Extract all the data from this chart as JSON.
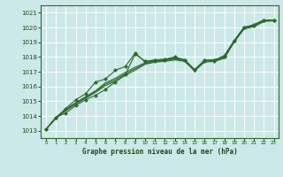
{
  "title": "Graphe pression niveau de la mer (hPa)",
  "bg_color": "#cce8e8",
  "grid_color": "#aad4d4",
  "line_color": "#2d6a2d",
  "xlim": [
    -0.5,
    23.5
  ],
  "ylim": [
    1012.5,
    1021.5
  ],
  "yticks": [
    1013,
    1014,
    1015,
    1016,
    1017,
    1018,
    1019,
    1020,
    1021
  ],
  "xticks": [
    0,
    1,
    2,
    3,
    4,
    5,
    6,
    7,
    8,
    9,
    10,
    11,
    12,
    13,
    14,
    15,
    16,
    17,
    18,
    19,
    20,
    21,
    22,
    23
  ],
  "line1": [
    1013.1,
    1013.9,
    1014.2,
    1014.7,
    1015.1,
    1015.4,
    1015.8,
    1016.3,
    1016.8,
    1018.2,
    1017.7,
    1017.75,
    1017.8,
    1017.95,
    1017.8,
    1017.1,
    1017.8,
    1017.75,
    1018.1,
    1019.1,
    1020.0,
    1020.15,
    1020.5,
    1020.5
  ],
  "line2": [
    1013.1,
    1013.85,
    1014.35,
    1014.8,
    1015.2,
    1015.6,
    1016.05,
    1016.35,
    1016.75,
    1017.1,
    1017.5,
    1017.65,
    1017.7,
    1017.8,
    1017.7,
    1017.05,
    1017.65,
    1017.7,
    1017.9,
    1019.0,
    1019.9,
    1020.05,
    1020.4,
    1020.45
  ],
  "line3": [
    1013.1,
    1013.85,
    1014.4,
    1014.85,
    1015.25,
    1015.65,
    1016.15,
    1016.45,
    1016.85,
    1017.2,
    1017.55,
    1017.7,
    1017.75,
    1017.85,
    1017.75,
    1017.1,
    1017.7,
    1017.75,
    1017.95,
    1019.05,
    1019.95,
    1020.1,
    1020.45,
    1020.5
  ],
  "line4": [
    1013.1,
    1013.85,
    1014.45,
    1014.9,
    1015.3,
    1015.7,
    1016.25,
    1016.55,
    1016.95,
    1017.3,
    1017.6,
    1017.75,
    1017.8,
    1017.9,
    1017.8,
    1017.15,
    1017.75,
    1017.8,
    1018.05,
    1019.1,
    1020.0,
    1020.15,
    1020.5,
    1020.5
  ],
  "line5": [
    1013.1,
    1013.9,
    1014.5,
    1015.1,
    1015.5,
    1016.3,
    1016.5,
    1017.1,
    1017.35,
    1018.25,
    1017.7,
    1017.8,
    1017.85,
    1018.0,
    1017.8,
    1017.1,
    1017.75,
    1017.8,
    1018.0,
    1019.1,
    1020.0,
    1020.2,
    1020.5,
    1020.5
  ]
}
